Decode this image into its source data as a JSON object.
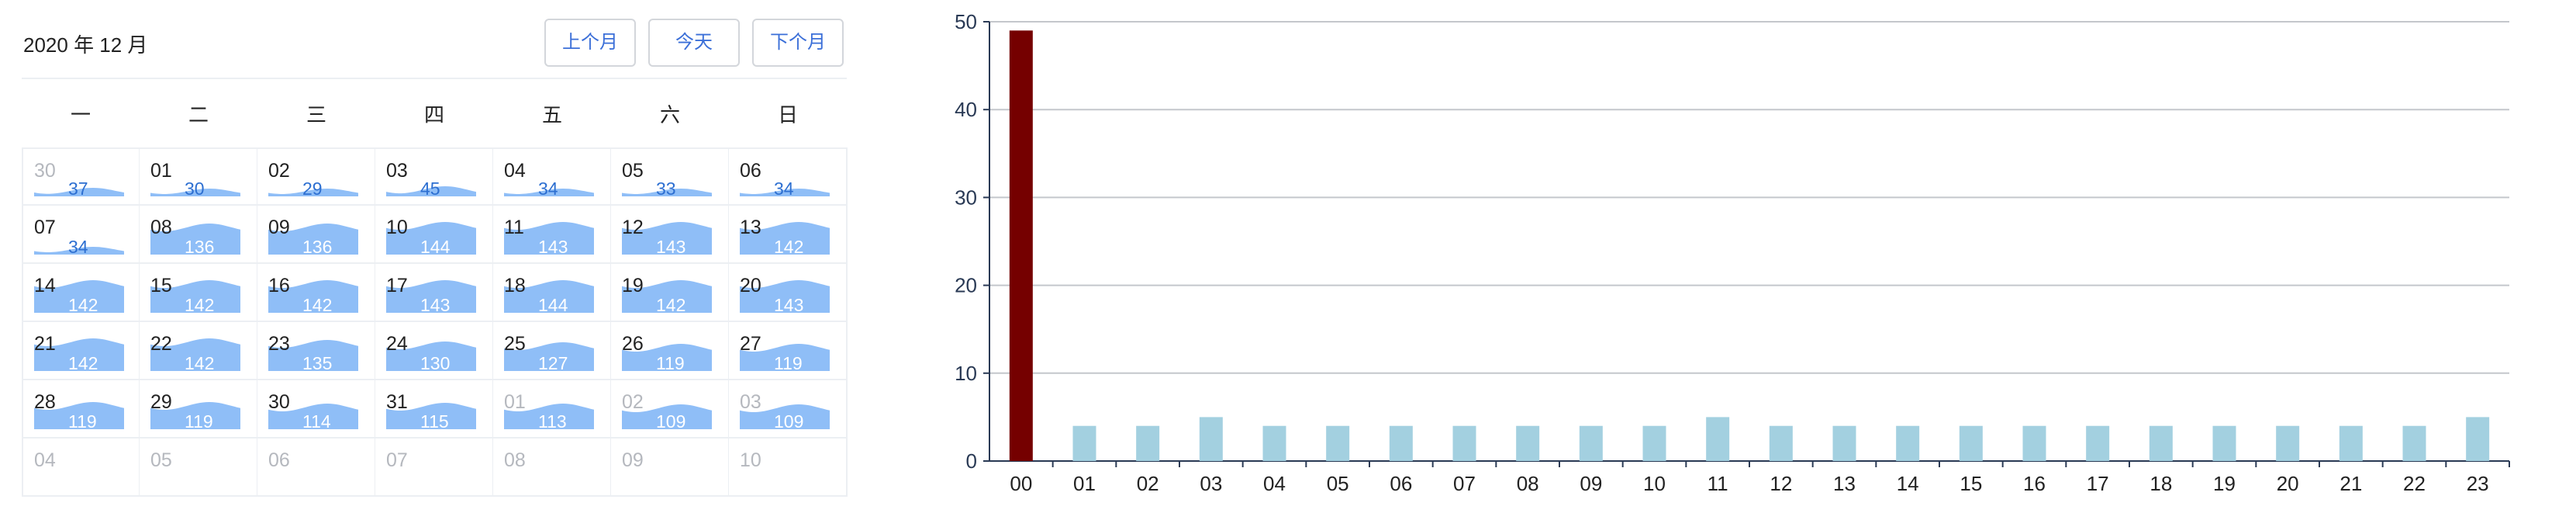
{
  "calendar": {
    "title": "2020 年 12 月",
    "buttons": {
      "prev": "上个月",
      "today": "今天",
      "next": "下个月"
    },
    "weekdays": [
      "一",
      "二",
      "三",
      "四",
      "五",
      "六",
      "日"
    ],
    "days": [
      {
        "d": "30",
        "v": "37",
        "other": true
      },
      {
        "d": "01",
        "v": "30"
      },
      {
        "d": "02",
        "v": "29"
      },
      {
        "d": "03",
        "v": "45"
      },
      {
        "d": "04",
        "v": "34"
      },
      {
        "d": "05",
        "v": "33"
      },
      {
        "d": "06",
        "v": "34"
      },
      {
        "d": "07",
        "v": "34"
      },
      {
        "d": "08",
        "v": "136"
      },
      {
        "d": "09",
        "v": "136"
      },
      {
        "d": "10",
        "v": "144"
      },
      {
        "d": "11",
        "v": "143"
      },
      {
        "d": "12",
        "v": "143"
      },
      {
        "d": "13",
        "v": "142"
      },
      {
        "d": "14",
        "v": "142"
      },
      {
        "d": "15",
        "v": "142"
      },
      {
        "d": "16",
        "v": "142"
      },
      {
        "d": "17",
        "v": "143"
      },
      {
        "d": "18",
        "v": "144"
      },
      {
        "d": "19",
        "v": "142"
      },
      {
        "d": "20",
        "v": "143"
      },
      {
        "d": "21",
        "v": "142"
      },
      {
        "d": "22",
        "v": "142"
      },
      {
        "d": "23",
        "v": "135"
      },
      {
        "d": "24",
        "v": "130"
      },
      {
        "d": "25",
        "v": "127"
      },
      {
        "d": "26",
        "v": "119"
      },
      {
        "d": "27",
        "v": "119"
      },
      {
        "d": "28",
        "v": "119"
      },
      {
        "d": "29",
        "v": "119"
      },
      {
        "d": "30",
        "v": "114"
      },
      {
        "d": "31",
        "v": "115"
      },
      {
        "d": "01",
        "v": "113",
        "other": true
      },
      {
        "d": "02",
        "v": "109",
        "other": true
      },
      {
        "d": "03",
        "v": "109",
        "other": true
      },
      {
        "d": "04",
        "v": null,
        "other": true
      },
      {
        "d": "05",
        "v": null,
        "other": true
      },
      {
        "d": "06",
        "v": null,
        "other": true
      },
      {
        "d": "07",
        "v": null,
        "other": true
      },
      {
        "d": "08",
        "v": null,
        "other": true
      },
      {
        "d": "09",
        "v": null,
        "other": true
      },
      {
        "d": "10",
        "v": null,
        "other": true
      }
    ],
    "wave_color": "#8fbef7",
    "wave_max": 150
  },
  "chart_data": {
    "type": "bar",
    "categories": [
      "00",
      "01",
      "02",
      "03",
      "04",
      "05",
      "06",
      "07",
      "08",
      "09",
      "10",
      "11",
      "12",
      "13",
      "14",
      "15",
      "16",
      "17",
      "18",
      "19",
      "20",
      "21",
      "22",
      "23"
    ],
    "values": [
      49,
      4,
      4,
      5,
      4,
      4,
      4,
      4,
      4,
      4,
      4,
      5,
      4,
      4,
      4,
      4,
      4,
      4,
      4,
      4,
      4,
      4,
      4,
      5
    ],
    "yticks": [
      0,
      10,
      20,
      30,
      40,
      50
    ],
    "ylim": [
      0,
      50
    ],
    "grid": true,
    "highlight_index": 0,
    "colors": {
      "bar": "#a3d0e0",
      "highlight": "#750000",
      "grid": "#c4c7cc",
      "axis": "#2a3a55"
    }
  }
}
